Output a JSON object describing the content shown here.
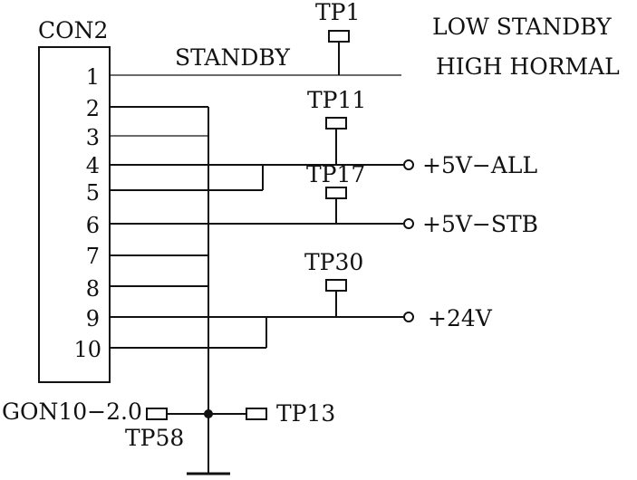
{
  "connector": {
    "name": "CON2",
    "pins": [
      "1",
      "2",
      "3",
      "4",
      "5",
      "6",
      "7",
      "8",
      "9",
      "10"
    ],
    "part_label": "GON10−2.0"
  },
  "signals": {
    "standby": "STANDBY",
    "mode_low": "LOW STANDBY",
    "mode_high": "HIGH HORMAL",
    "v5_all": "+5V−ALL",
    "v5_stb": "+5V−STB",
    "v24": "+24V"
  },
  "test_points": {
    "tp1": "TP1",
    "tp11": "TP11",
    "tp17": "TP17",
    "tp30": "TP30",
    "tp13": "TP13",
    "tp58": "TP58"
  }
}
